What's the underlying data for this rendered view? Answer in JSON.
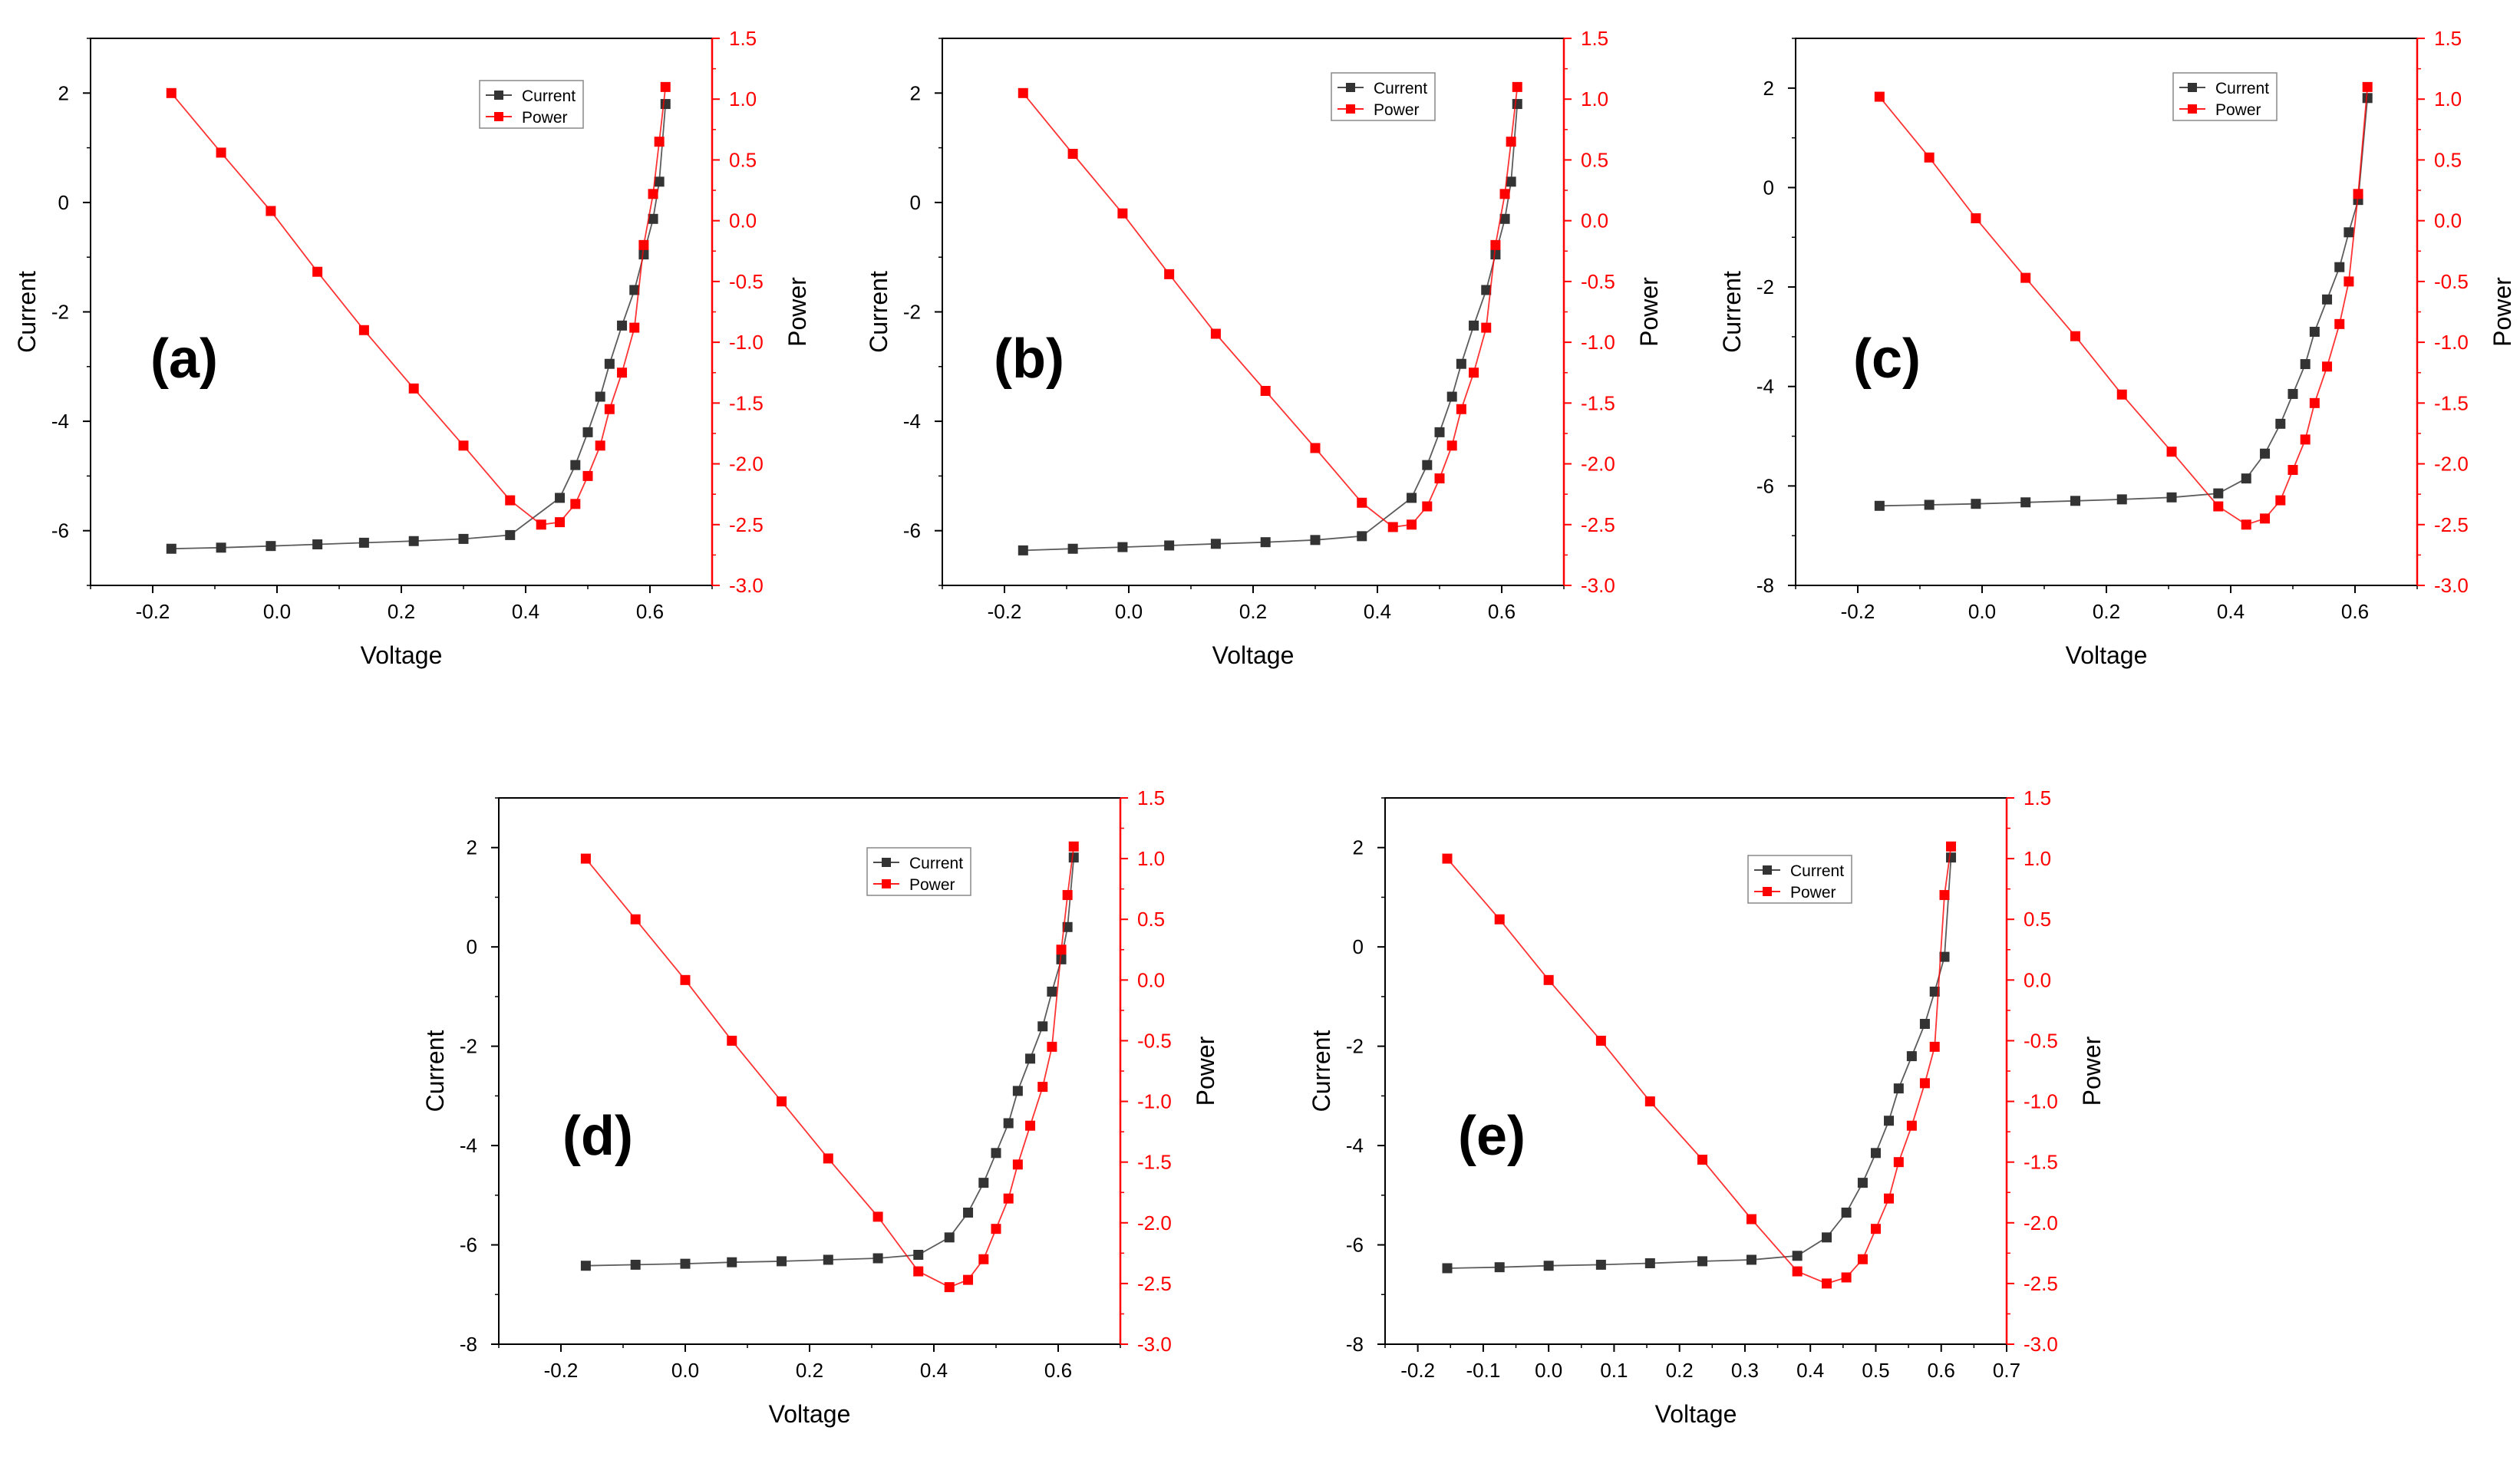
{
  "colors": {
    "current": "#333333",
    "power": "#ff0000",
    "axis": "#000000",
    "background": "#ffffff"
  },
  "chart_data": [
    {
      "type": "line",
      "panel_label": "(a)",
      "xlabel": "Voltage",
      "ylabel": "Current",
      "y2label": "Power",
      "xlim": [
        -0.3,
        0.7
      ],
      "ylim": [
        -7,
        3
      ],
      "y2lim": [
        -3.0,
        1.5
      ],
      "xticks": [
        "-0.2",
        "0.0",
        "0.2",
        "0.4",
        "0.6"
      ],
      "yticks": [
        "-6",
        "-4",
        "-2",
        "0",
        "2"
      ],
      "y2ticks": [
        "1.5",
        "1.0",
        "0.5",
        "0.0",
        "-0.5",
        "-1.0",
        "-1.5",
        "-2.0",
        "-2.5",
        "-3.0"
      ],
      "legend": [
        "Current",
        "Power"
      ],
      "series": [
        {
          "name": "Current",
          "axis": "left",
          "x": [
            -0.17,
            -0.09,
            -0.01,
            0.065,
            0.14,
            0.22,
            0.3,
            0.375,
            0.455,
            0.48,
            0.5,
            0.52,
            0.535,
            0.555,
            0.575,
            0.59,
            0.605,
            0.615,
            0.625
          ],
          "y": [
            -6.33,
            -6.31,
            -6.28,
            -6.25,
            -6.22,
            -6.19,
            -6.15,
            -6.08,
            -5.4,
            -4.8,
            -4.2,
            -3.55,
            -2.95,
            -2.25,
            -1.6,
            -0.95,
            -0.3,
            0.38,
            1.8
          ]
        },
        {
          "name": "Power",
          "axis": "right",
          "x": [
            -0.17,
            -0.09,
            -0.01,
            0.065,
            0.14,
            0.22,
            0.3,
            0.375,
            0.425,
            0.455,
            0.48,
            0.5,
            0.52,
            0.535,
            0.555,
            0.575,
            0.59,
            0.605,
            0.615,
            0.625
          ],
          "y": [
            1.05,
            0.56,
            0.08,
            -0.42,
            -0.9,
            -1.38,
            -1.85,
            -2.3,
            -2.5,
            -2.48,
            -2.33,
            -2.1,
            -1.85,
            -1.55,
            -1.25,
            -0.88,
            -0.2,
            0.22,
            0.65,
            1.1
          ]
        }
      ]
    },
    {
      "type": "line",
      "panel_label": "(b)",
      "xlabel": "Voltage",
      "ylabel": "Current",
      "y2label": "Power",
      "xlim": [
        -0.3,
        0.7
      ],
      "ylim": [
        -7,
        3
      ],
      "y2lim": [
        -3.0,
        1.5
      ],
      "xticks": [
        "-0.2",
        "0.0",
        "0.2",
        "0.4",
        "0.6"
      ],
      "yticks": [
        "-6",
        "-4",
        "-2",
        "0",
        "2"
      ],
      "y2ticks": [
        "1.5",
        "1.0",
        "0.5",
        "0.0",
        "-0.5",
        "-1.0",
        "-1.5",
        "-2.0",
        "-2.5",
        "-3.0"
      ],
      "legend": [
        "Current",
        "Power"
      ],
      "series": [
        {
          "name": "Current",
          "axis": "left",
          "x": [
            -0.17,
            -0.09,
            -0.01,
            0.065,
            0.14,
            0.22,
            0.3,
            0.375,
            0.455,
            0.48,
            0.5,
            0.52,
            0.535,
            0.555,
            0.575,
            0.59,
            0.605,
            0.615,
            0.625
          ],
          "y": [
            -6.36,
            -6.33,
            -6.3,
            -6.27,
            -6.24,
            -6.21,
            -6.17,
            -6.1,
            -5.4,
            -4.8,
            -4.2,
            -3.55,
            -2.95,
            -2.25,
            -1.6,
            -0.95,
            -0.3,
            0.38,
            1.8
          ]
        },
        {
          "name": "Power",
          "axis": "right",
          "x": [
            -0.17,
            -0.09,
            -0.01,
            0.065,
            0.14,
            0.22,
            0.3,
            0.375,
            0.425,
            0.455,
            0.48,
            0.5,
            0.52,
            0.535,
            0.555,
            0.575,
            0.59,
            0.605,
            0.615,
            0.625
          ],
          "y": [
            1.05,
            0.55,
            0.06,
            -0.44,
            -0.93,
            -1.4,
            -1.87,
            -2.32,
            -2.52,
            -2.5,
            -2.35,
            -2.12,
            -1.85,
            -1.55,
            -1.25,
            -0.88,
            -0.2,
            0.22,
            0.65,
            1.1
          ]
        }
      ]
    },
    {
      "type": "line",
      "panel_label": "(c)",
      "xlabel": "Voltage",
      "ylabel": "Current",
      "y2label": "Power",
      "xlim": [
        -0.3,
        0.7
      ],
      "ylim": [
        -8,
        3
      ],
      "y2lim": [
        -3.0,
        1.5
      ],
      "xticks": [
        "-0.2",
        "0.0",
        "0.2",
        "0.4",
        "0.6"
      ],
      "yticks": [
        "-8",
        "-6",
        "-4",
        "-2",
        "0",
        "2"
      ],
      "y2ticks": [
        "1.5",
        "1.0",
        "0.5",
        "0.0",
        "-0.5",
        "-1.0",
        "-1.5",
        "-2.0",
        "-2.5",
        "-3.0"
      ],
      "legend": [
        "Current",
        "Power"
      ],
      "series": [
        {
          "name": "Current",
          "axis": "left",
          "x": [
            -0.165,
            -0.085,
            -0.01,
            0.07,
            0.15,
            0.225,
            0.305,
            0.38,
            0.425,
            0.455,
            0.48,
            0.5,
            0.52,
            0.535,
            0.555,
            0.575,
            0.59,
            0.605,
            0.62
          ],
          "y": [
            -6.4,
            -6.38,
            -6.36,
            -6.33,
            -6.3,
            -6.27,
            -6.23,
            -6.15,
            -5.85,
            -5.35,
            -4.75,
            -4.15,
            -3.55,
            -2.9,
            -2.25,
            -1.6,
            -0.9,
            -0.25,
            1.8
          ]
        },
        {
          "name": "Power",
          "axis": "right",
          "x": [
            -0.165,
            -0.085,
            -0.01,
            0.07,
            0.15,
            0.225,
            0.305,
            0.38,
            0.425,
            0.455,
            0.48,
            0.5,
            0.52,
            0.535,
            0.555,
            0.575,
            0.59,
            0.605,
            0.62
          ],
          "y": [
            1.02,
            0.52,
            0.02,
            -0.47,
            -0.95,
            -1.43,
            -1.9,
            -2.35,
            -2.5,
            -2.45,
            -2.3,
            -2.05,
            -1.8,
            -1.5,
            -1.2,
            -0.85,
            -0.5,
            0.22,
            1.1
          ]
        }
      ]
    },
    {
      "type": "line",
      "panel_label": "(d)",
      "xlabel": "Voltage",
      "ylabel": "Current",
      "y2label": "Power",
      "xlim": [
        -0.3,
        0.7
      ],
      "ylim": [
        -8,
        3
      ],
      "y2lim": [
        -3.0,
        1.5
      ],
      "xticks": [
        "-0.2",
        "0.0",
        "0.2",
        "0.4",
        "0.6"
      ],
      "yticks": [
        "-8",
        "-6",
        "-4",
        "-2",
        "0",
        "2"
      ],
      "y2ticks": [
        "1.5",
        "1.0",
        "0.5",
        "0.0",
        "-0.5",
        "-1.0",
        "-1.5",
        "-2.0",
        "-2.5",
        "-3.0"
      ],
      "legend": [
        "Current",
        "Power"
      ],
      "series": [
        {
          "name": "Current",
          "axis": "left",
          "x": [
            -0.16,
            -0.08,
            0.0,
            0.075,
            0.155,
            0.23,
            0.31,
            0.375,
            0.425,
            0.455,
            0.48,
            0.5,
            0.52,
            0.535,
            0.555,
            0.575,
            0.59,
            0.605,
            0.615,
            0.625
          ],
          "y": [
            -6.42,
            -6.4,
            -6.38,
            -6.35,
            -6.33,
            -6.3,
            -6.27,
            -6.2,
            -5.85,
            -5.35,
            -4.75,
            -4.15,
            -3.55,
            -2.9,
            -2.25,
            -1.6,
            -0.9,
            -0.25,
            0.4,
            1.8
          ]
        },
        {
          "name": "Power",
          "axis": "right",
          "x": [
            -0.16,
            -0.08,
            0.0,
            0.075,
            0.155,
            0.23,
            0.31,
            0.375,
            0.425,
            0.455,
            0.48,
            0.5,
            0.52,
            0.535,
            0.555,
            0.575,
            0.59,
            0.605,
            0.615,
            0.625
          ],
          "y": [
            1.0,
            0.5,
            0.0,
            -0.5,
            -1.0,
            -1.47,
            -1.95,
            -2.4,
            -2.53,
            -2.47,
            -2.3,
            -2.05,
            -1.8,
            -1.52,
            -1.2,
            -0.88,
            -0.55,
            0.25,
            0.7,
            1.1
          ]
        }
      ]
    },
    {
      "type": "line",
      "panel_label": "(e)",
      "xlabel": "Voltage",
      "ylabel": "Current",
      "y2label": "Power",
      "xlim": [
        -0.25,
        0.7
      ],
      "ylim": [
        -8,
        3
      ],
      "y2lim": [
        -3.0,
        1.5
      ],
      "xticks": [
        "-0.2",
        "-0.1",
        "0.0",
        "0.1",
        "0.2",
        "0.3",
        "0.4",
        "0.5",
        "0.6",
        "0.7"
      ],
      "yticks": [
        "-8",
        "-6",
        "-4",
        "-2",
        "0",
        "2"
      ],
      "y2ticks": [
        "1.5",
        "1.0",
        "0.5",
        "0.0",
        "-0.5",
        "-1.0",
        "-1.5",
        "-2.0",
        "-2.5",
        "-3.0"
      ],
      "legend": [
        "Current",
        "Power"
      ],
      "series": [
        {
          "name": "Current",
          "axis": "left",
          "x": [
            -0.155,
            -0.075,
            0.0,
            0.08,
            0.155,
            0.235,
            0.31,
            0.38,
            0.425,
            0.455,
            0.48,
            0.5,
            0.52,
            0.535,
            0.555,
            0.575,
            0.59,
            0.605,
            0.615
          ],
          "y": [
            -6.47,
            -6.45,
            -6.42,
            -6.4,
            -6.37,
            -6.33,
            -6.3,
            -6.22,
            -5.85,
            -5.35,
            -4.75,
            -4.15,
            -3.5,
            -2.85,
            -2.2,
            -1.55,
            -0.9,
            -0.2,
            1.8
          ]
        },
        {
          "name": "Power",
          "axis": "right",
          "x": [
            -0.155,
            -0.075,
            0.0,
            0.08,
            0.155,
            0.235,
            0.31,
            0.38,
            0.425,
            0.455,
            0.48,
            0.5,
            0.52,
            0.535,
            0.555,
            0.575,
            0.59,
            0.605,
            0.615
          ],
          "y": [
            1.0,
            0.5,
            0.0,
            -0.5,
            -1.0,
            -1.48,
            -1.97,
            -2.4,
            -2.5,
            -2.45,
            -2.3,
            -2.05,
            -1.8,
            -1.5,
            -1.2,
            -0.85,
            -0.55,
            0.7,
            1.1
          ]
        }
      ]
    }
  ]
}
